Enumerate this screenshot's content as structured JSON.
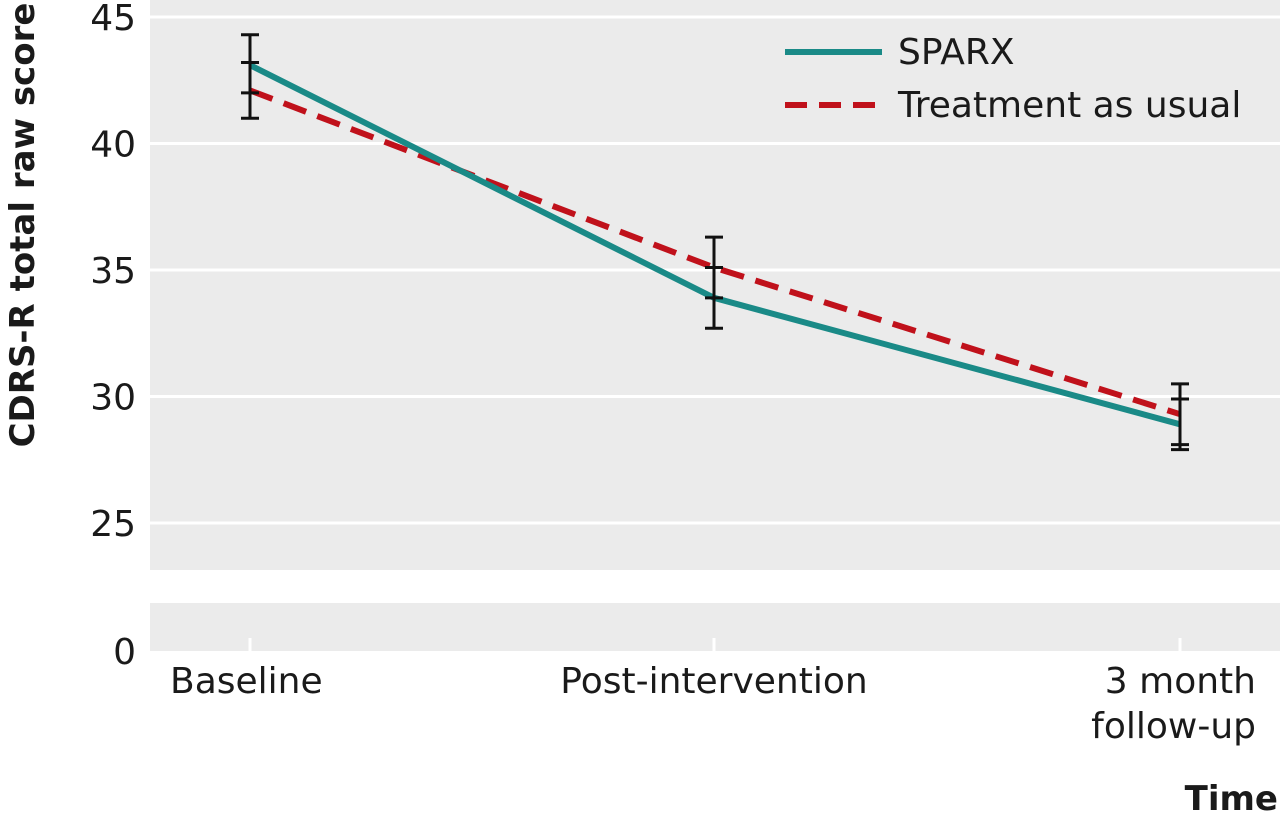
{
  "chart_data": {
    "type": "line",
    "xlabel": "Time",
    "ylabel": "CDRS-R total raw score",
    "categories": [
      "Baseline",
      "Post-intervention",
      "3 month follow-up"
    ],
    "category_lines": [
      [
        "Baseline"
      ],
      [
        "Post-intervention"
      ],
      [
        "3 month",
        "follow-up"
      ]
    ],
    "y_ticks": [
      0,
      25,
      30,
      35,
      40,
      45
    ],
    "ylim": [
      25,
      45
    ],
    "axis_break": true,
    "grid": true,
    "legend_position": "top-right",
    "series": [
      {
        "name": "SPARX",
        "color": "#1a8a87",
        "dash": "solid",
        "values": [
          43.1,
          33.9,
          28.9
        ],
        "error_low": [
          42.0,
          32.7,
          27.9
        ],
        "error_high": [
          44.3,
          35.1,
          29.9
        ]
      },
      {
        "name": "Treatment as usual",
        "color": "#c0111b",
        "dash": "dashed",
        "values": [
          42.1,
          35.1,
          29.3
        ],
        "error_low": [
          41.0,
          33.9,
          28.1
        ],
        "error_high": [
          43.2,
          36.3,
          30.5
        ]
      }
    ],
    "background_color": "#ebebeb",
    "error_bar_color": "#111111"
  }
}
